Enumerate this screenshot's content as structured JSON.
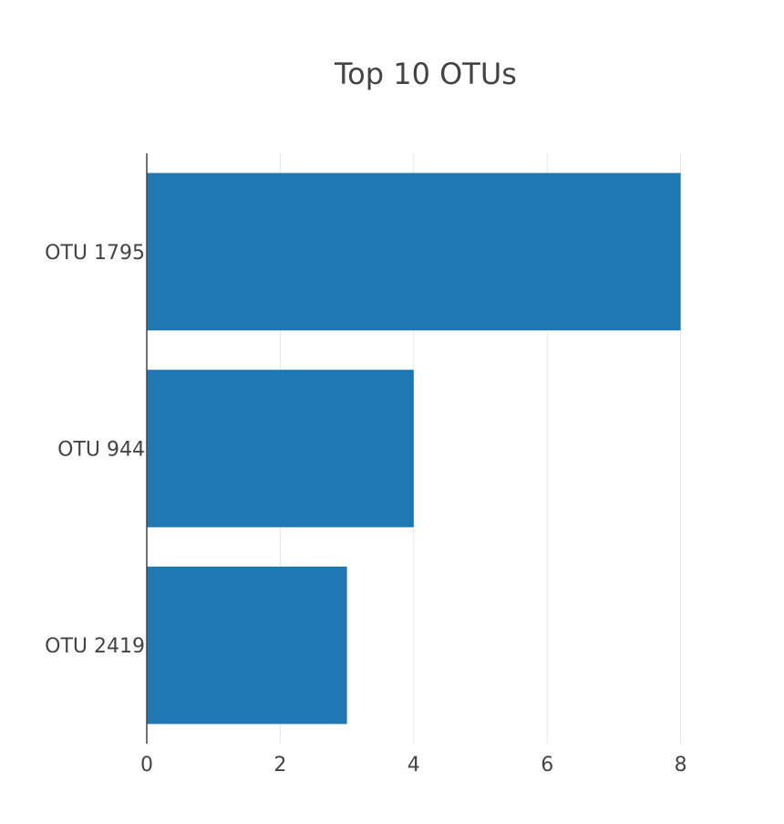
{
  "chart_data": {
    "type": "bar",
    "orientation": "horizontal",
    "title": "Top 10 OTUs",
    "xlabel": "",
    "ylabel": "",
    "categories": [
      "OTU 1795",
      "OTU 944",
      "OTU 2419"
    ],
    "values": [
      8,
      4,
      3
    ],
    "xlim": [
      0,
      8.2
    ],
    "x_ticks": [
      0,
      2,
      4,
      6,
      8
    ],
    "grid": "vertical",
    "legend": "none",
    "bar_color": "#1f77b4"
  }
}
